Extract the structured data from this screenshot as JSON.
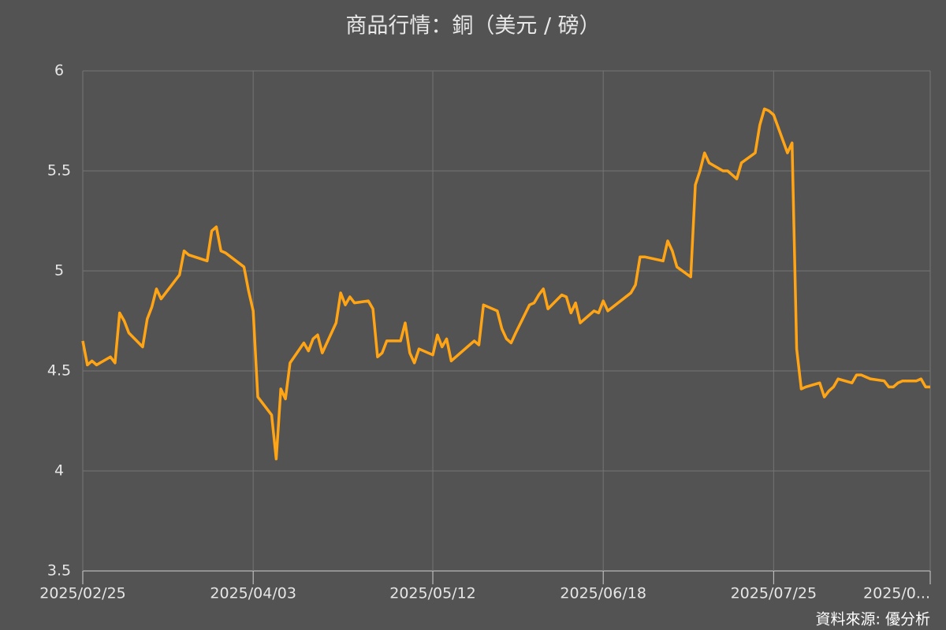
{
  "chart_data": {
    "type": "line",
    "title": "商品行情：銅（美元 / 磅）",
    "source": "資料來源: 優分析",
    "grid": true,
    "x": [
      "2025/02/25",
      "2025/02/26",
      "2025/02/27",
      "2025/02/28",
      "2025/03/03",
      "2025/03/04",
      "2025/03/05",
      "2025/03/06",
      "2025/03/07",
      "2025/03/10",
      "2025/03/11",
      "2025/03/12",
      "2025/03/13",
      "2025/03/14",
      "2025/03/18",
      "2025/03/19",
      "2025/03/20",
      "2025/03/24",
      "2025/03/25",
      "2025/03/26",
      "2025/03/27",
      "2025/03/28",
      "2025/04/01",
      "2025/04/02",
      "2025/04/03",
      "2025/04/04",
      "2025/04/07",
      "2025/04/08",
      "2025/04/09",
      "2025/04/10",
      "2025/04/11",
      "2025/04/14",
      "2025/04/15",
      "2025/04/16",
      "2025/04/17",
      "2025/04/18",
      "2025/04/21",
      "2025/04/22",
      "2025/04/23",
      "2025/04/24",
      "2025/04/25",
      "2025/04/28",
      "2025/04/29",
      "2025/04/30",
      "2025/05/01",
      "2025/05/02",
      "2025/05/05",
      "2025/05/06",
      "2025/05/07",
      "2025/05/08",
      "2025/05/09",
      "2025/05/12",
      "2025/05/13",
      "2025/05/14",
      "2025/05/15",
      "2025/05/16",
      "2025/05/20",
      "2025/05/21",
      "2025/05/22",
      "2025/05/23",
      "2025/05/26",
      "2025/05/27",
      "2025/05/28",
      "2025/05/29",
      "2025/05/30",
      "2025/06/02",
      "2025/06/03",
      "2025/06/04",
      "2025/06/05",
      "2025/06/06",
      "2025/06/09",
      "2025/06/10",
      "2025/06/11",
      "2025/06/12",
      "2025/06/13",
      "2025/06/16",
      "2025/06/17",
      "2025/06/18",
      "2025/06/19",
      "2025/06/24",
      "2025/06/25",
      "2025/06/26",
      "2025/06/27",
      "2025/07/01",
      "2025/07/02",
      "2025/07/03",
      "2025/07/04",
      "2025/07/07",
      "2025/07/08",
      "2025/07/09",
      "2025/07/10",
      "2025/07/11",
      "2025/07/14",
      "2025/07/15",
      "2025/07/16",
      "2025/07/17",
      "2025/07/18",
      "2025/07/21",
      "2025/07/22",
      "2025/07/23",
      "2025/07/24",
      "2025/07/25",
      "2025/07/28",
      "2025/07/29",
      "2025/07/30",
      "2025/07/31",
      "2025/08/01",
      "2025/08/04",
      "2025/08/05",
      "2025/08/06",
      "2025/08/07",
      "2025/08/08",
      "2025/08/11",
      "2025/08/12",
      "2025/08/13",
      "2025/08/14",
      "2025/08/15",
      "2025/08/18",
      "2025/08/19",
      "2025/08/20",
      "2025/08/21",
      "2025/08/22",
      "2025/08/25",
      "2025/08/26",
      "2025/08/27",
      "2025/08/28"
    ],
    "series": [
      {
        "name": "銅",
        "color": "#ffa515",
        "values": [
          4.65,
          4.53,
          4.55,
          4.53,
          4.57,
          4.54,
          4.79,
          4.75,
          4.69,
          4.62,
          4.76,
          4.82,
          4.91,
          4.86,
          4.98,
          5.1,
          5.08,
          5.05,
          5.2,
          5.22,
          5.1,
          5.09,
          5.02,
          4.9,
          4.8,
          4.37,
          4.28,
          4.06,
          4.41,
          4.36,
          4.54,
          4.64,
          4.6,
          4.66,
          4.68,
          4.59,
          4.74,
          4.89,
          4.83,
          4.87,
          4.84,
          4.85,
          4.81,
          4.57,
          4.59,
          4.65,
          4.65,
          4.74,
          4.59,
          4.54,
          4.61,
          4.58,
          4.68,
          4.62,
          4.66,
          4.55,
          4.63,
          4.65,
          4.63,
          4.83,
          4.8,
          4.71,
          4.66,
          4.64,
          4.69,
          4.83,
          4.84,
          4.88,
          4.91,
          4.81,
          4.88,
          4.87,
          4.79,
          4.84,
          4.74,
          4.8,
          4.79,
          4.85,
          4.8,
          4.89,
          4.93,
          5.07,
          5.07,
          5.05,
          5.15,
          5.1,
          5.02,
          4.97,
          5.43,
          5.5,
          5.59,
          5.54,
          5.5,
          5.5,
          5.48,
          5.46,
          5.54,
          5.59,
          5.73,
          5.81,
          5.8,
          5.78,
          5.59,
          5.64,
          4.61,
          4.41,
          4.42,
          4.44,
          4.37,
          4.4,
          4.42,
          4.46,
          4.44,
          4.48,
          4.48,
          4.47,
          4.46,
          4.45,
          4.42,
          4.42,
          4.44,
          4.45,
          4.45,
          4.46,
          4.42,
          4.42
        ]
      }
    ],
    "xlim": [
      "2025/02/25",
      "2025/08/28"
    ],
    "xticks": [
      "2025/02/25",
      "2025/04/03",
      "2025/05/12",
      "2025/06/18",
      "2025/07/25",
      {
        "value": "2025/08/28",
        "label": "2025/0..."
      }
    ],
    "ylim": [
      3.5,
      6
    ],
    "yticks": [
      3.5,
      4,
      4.5,
      5,
      5.5,
      6
    ]
  }
}
